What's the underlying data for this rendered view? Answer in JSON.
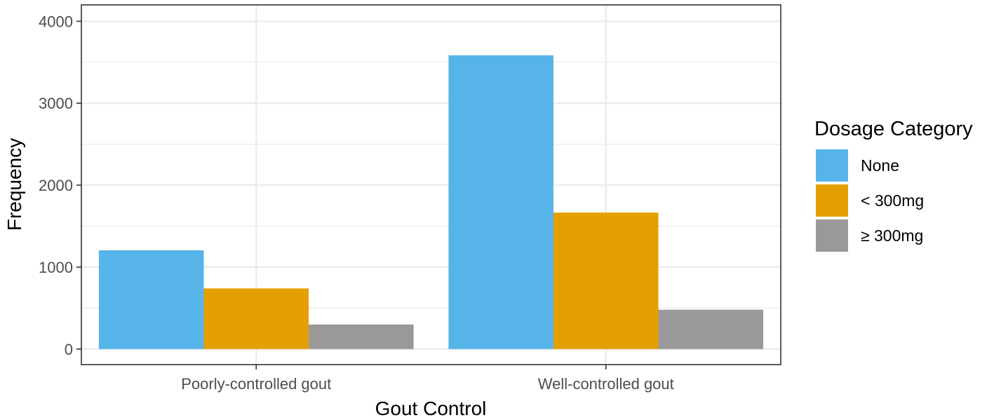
{
  "chart_data": {
    "type": "bar",
    "categories": [
      "Poorly-controlled gout",
      "Well-controlled gout"
    ],
    "series": [
      {
        "name": "None",
        "values": [
          1205,
          3585
        ],
        "color": "#56B4E9"
      },
      {
        "name": "< 300mg",
        "values": [
          740,
          1665
        ],
        "color": "#E69F00"
      },
      {
        "name": "≥ 300mg",
        "values": [
          300,
          480
        ],
        "color": "#999999"
      }
    ],
    "xlabel": "Gout Control",
    "ylabel": "Frequency",
    "ylim": [
      -190,
      4200
    ],
    "yticks": [
      0,
      1000,
      2000,
      3000,
      4000
    ],
    "yticks_labels": [
      "0",
      "1000",
      "2000",
      "3000",
      "4000"
    ],
    "grid": true,
    "legend": {
      "title": "Dosage Category",
      "placement": "right"
    }
  }
}
